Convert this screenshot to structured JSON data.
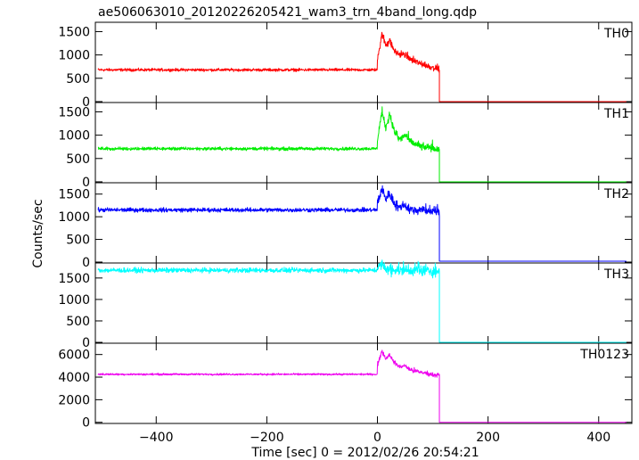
{
  "title": "ae506063010_20120226205421_wam3_trn_4band_long.qdp",
  "xlabel": "Time [sec] 0 = 2012/02/26 20:54:21",
  "ylabel": "Counts/sec",
  "chart_data": {
    "type": "line",
    "x_range": [
      -510,
      460
    ],
    "x_ticks": [
      -400,
      -200,
      0,
      200,
      400
    ],
    "x_tick_labels": [
      "−400",
      "−200",
      "0",
      "200",
      "400"
    ],
    "step_end_time": 112,
    "data_end_time": 450,
    "panels": [
      {
        "name": "TH0",
        "color": "#ff0000",
        "ylim": [
          -20,
          1700
        ],
        "y_ticks": [
          0,
          500,
          1000,
          1500
        ],
        "y_tick_labels": [
          "0",
          "500",
          "1000",
          "1500"
        ],
        "baseline": 680,
        "noise": 30,
        "burst_points": [
          [
            0,
            900
          ],
          [
            8,
            1450
          ],
          [
            15,
            1200
          ],
          [
            22,
            1300
          ],
          [
            30,
            1100
          ],
          [
            40,
            1000
          ],
          [
            50,
            1000
          ],
          [
            60,
            900
          ],
          [
            80,
            800
          ],
          [
            110,
            700
          ]
        ],
        "post_level": 0
      },
      {
        "name": "TH1",
        "color": "#00ee00",
        "ylim": [
          -20,
          1700
        ],
        "y_ticks": [
          0,
          500,
          1000,
          1500
        ],
        "y_tick_labels": [
          "0",
          "500",
          "1000",
          "1500"
        ],
        "baseline": 710,
        "noise": 35,
        "burst_points": [
          [
            0,
            900
          ],
          [
            8,
            1500
          ],
          [
            15,
            1150
          ],
          [
            22,
            1450
          ],
          [
            30,
            1100
          ],
          [
            40,
            900
          ],
          [
            50,
            1000
          ],
          [
            60,
            850
          ],
          [
            80,
            750
          ],
          [
            110,
            700
          ]
        ],
        "post_level": 0
      },
      {
        "name": "TH2",
        "color": "#0000ff",
        "ylim": [
          -20,
          1750
        ],
        "y_ticks": [
          0,
          500,
          1000,
          1500
        ],
        "y_tick_labels": [
          "0",
          "500",
          "1000",
          "1500"
        ],
        "baseline": 1150,
        "noise": 45,
        "burst_points": [
          [
            0,
            1300
          ],
          [
            8,
            1600
          ],
          [
            15,
            1400
          ],
          [
            22,
            1500
          ],
          [
            30,
            1300
          ],
          [
            40,
            1200
          ],
          [
            50,
            1250
          ],
          [
            60,
            1150
          ],
          [
            80,
            1150
          ],
          [
            110,
            1100
          ]
        ],
        "post_level": 20
      },
      {
        "name": "TH3",
        "color": "#00ffff",
        "ylim": [
          -20,
          1850
        ],
        "y_ticks": [
          0,
          500,
          1000,
          1500
        ],
        "y_tick_labels": [
          "0",
          "500",
          "1000",
          "1500"
        ],
        "baseline": 1680,
        "noise": 55,
        "burst_points": [
          [
            0,
            1750
          ],
          [
            8,
            1800
          ],
          [
            15,
            1700
          ],
          [
            30,
            1680
          ],
          [
            60,
            1680
          ],
          [
            110,
            1650
          ]
        ],
        "post_level": 0
      },
      {
        "name": "TH0123",
        "color": "#ee00ee",
        "ylim": [
          -100,
          7000
        ],
        "y_ticks": [
          0,
          2000,
          4000,
          6000
        ],
        "y_tick_labels": [
          "0",
          "2000",
          "4000",
          "6000"
        ],
        "baseline": 4250,
        "noise": 80,
        "burst_points": [
          [
            0,
            5000
          ],
          [
            8,
            6300
          ],
          [
            15,
            5600
          ],
          [
            22,
            6000
          ],
          [
            30,
            5300
          ],
          [
            40,
            4900
          ],
          [
            50,
            5000
          ],
          [
            60,
            4600
          ],
          [
            80,
            4400
          ],
          [
            110,
            4150
          ]
        ],
        "post_level": 0
      }
    ]
  }
}
